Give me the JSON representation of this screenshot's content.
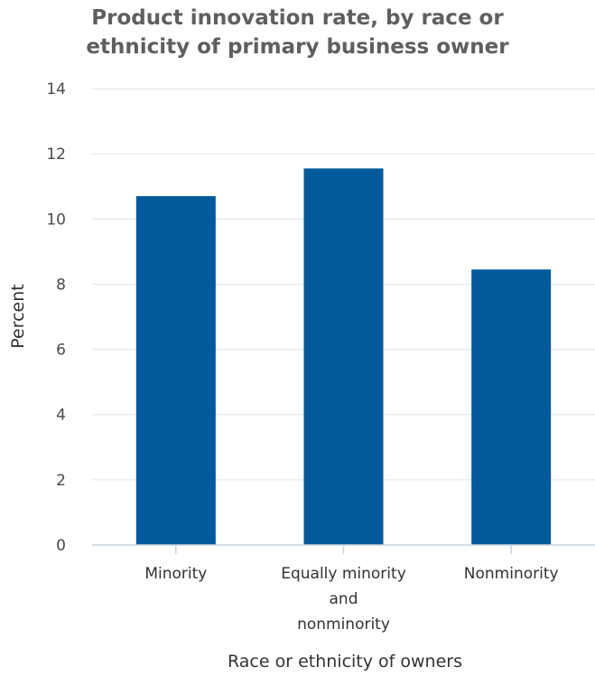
{
  "chart_data": {
    "type": "bar",
    "title_lines": [
      "Product innovation rate, by race or",
      "ethnicity of primary business owner"
    ],
    "categories": [
      [
        "Minority"
      ],
      [
        "Equally minority",
        "and",
        "nonminority"
      ],
      [
        "Nonminority"
      ]
    ],
    "values": [
      10.7,
      11.55,
      8.45
    ],
    "xlabel": "Race or ethnicity of owners",
    "ylabel": "Percent",
    "ylim": [
      0,
      14
    ],
    "yticks": [
      "0",
      "2",
      "4",
      "6",
      "8",
      "10",
      "12",
      "14"
    ],
    "grid": true,
    "bar_color": "#005A9B",
    "grid_color": "#e3e3e3",
    "axis_color": "#c9d4e0"
  }
}
